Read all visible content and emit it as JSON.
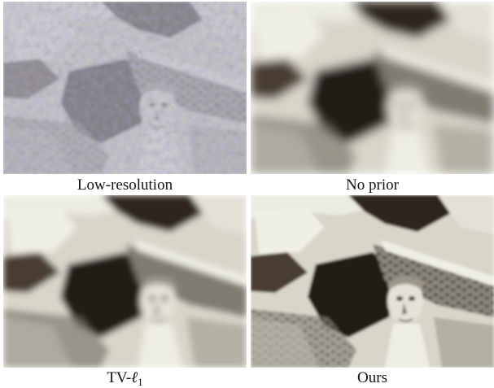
{
  "figure": {
    "panels": [
      {
        "id": "low-resolution",
        "caption": "Low-resolution"
      },
      {
        "id": "no-prior",
        "caption": "No prior"
      },
      {
        "id": "tv-l1",
        "caption_main": "TV-",
        "caption_symbol": "ℓ",
        "caption_sub": "1"
      },
      {
        "id": "ours",
        "caption": "Ours"
      }
    ]
  }
}
